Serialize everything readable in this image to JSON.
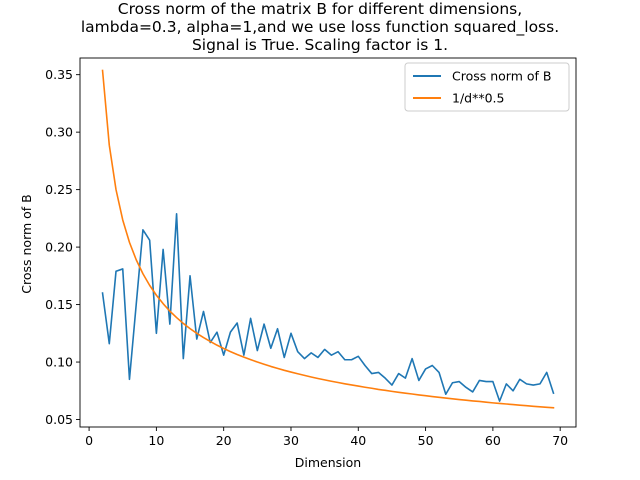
{
  "chart_data": {
    "type": "line",
    "title_lines": [
      "Cross norm of the matrix B for different dimensions,",
      "lambda=0.3, alpha=1,and we use loss function squared_loss.",
      "Signal is True. Scaling factor is 1."
    ],
    "xlabel": "Dimension",
    "ylabel": "Cross norm of B",
    "xlim": [
      -1.35,
      72.35
    ],
    "ylim": [
      0.0435,
      0.3645
    ],
    "xticks": [
      0,
      10,
      20,
      30,
      40,
      50,
      60,
      70
    ],
    "xtick_labels": [
      "0",
      "10",
      "20",
      "30",
      "40",
      "50",
      "60",
      "70"
    ],
    "yticks": [
      0.05,
      0.1,
      0.15,
      0.2,
      0.25,
      0.3,
      0.35
    ],
    "ytick_labels": [
      "0.05",
      "0.10",
      "0.15",
      "0.20",
      "0.25",
      "0.30",
      "0.35"
    ],
    "grid": false,
    "legend_position": "upper-right",
    "series": [
      {
        "name": "Cross norm of B",
        "color": "#1f77b4",
        "x": [
          2,
          3,
          4,
          5,
          6,
          7,
          8,
          9,
          10,
          11,
          12,
          13,
          14,
          15,
          16,
          17,
          18,
          19,
          20,
          21,
          22,
          23,
          24,
          25,
          26,
          27,
          28,
          29,
          30,
          31,
          32,
          33,
          34,
          35,
          36,
          37,
          38,
          39,
          40,
          41,
          42,
          43,
          44,
          45,
          46,
          47,
          48,
          49,
          50,
          51,
          52,
          53,
          54,
          55,
          56,
          57,
          58,
          59,
          60,
          61,
          62,
          63,
          64,
          65,
          66,
          67,
          68,
          69
        ],
        "y": [
          0.16,
          0.116,
          0.179,
          0.181,
          0.085,
          0.15,
          0.215,
          0.206,
          0.125,
          0.198,
          0.133,
          0.229,
          0.103,
          0.175,
          0.12,
          0.144,
          0.117,
          0.126,
          0.106,
          0.126,
          0.134,
          0.106,
          0.138,
          0.11,
          0.133,
          0.112,
          0.129,
          0.104,
          0.125,
          0.109,
          0.103,
          0.108,
          0.104,
          0.111,
          0.106,
          0.109,
          0.102,
          0.102,
          0.105,
          0.097,
          0.09,
          0.091,
          0.086,
          0.08,
          0.09,
          0.086,
          0.103,
          0.084,
          0.094,
          0.097,
          0.091,
          0.072,
          0.082,
          0.083,
          0.078,
          0.074,
          0.084,
          0.083,
          0.083,
          0.066,
          0.081,
          0.075,
          0.085,
          0.081,
          0.08,
          0.081,
          0.091,
          0.073
        ]
      },
      {
        "name": "1/d**0.5",
        "color": "#ff7f0e",
        "x": [
          2,
          3,
          4,
          5,
          6,
          7,
          8,
          9,
          10,
          11,
          12,
          13,
          14,
          15,
          16,
          17,
          18,
          19,
          20,
          21,
          22,
          23,
          24,
          25,
          26,
          27,
          28,
          29,
          30,
          31,
          32,
          33,
          34,
          35,
          36,
          37,
          38,
          39,
          40,
          41,
          42,
          43,
          44,
          45,
          46,
          47,
          48,
          49,
          50,
          51,
          52,
          53,
          54,
          55,
          56,
          57,
          58,
          59,
          60,
          61,
          62,
          63,
          64,
          65,
          66,
          67,
          68,
          69
        ],
        "y": [
          0.3536,
          0.2887,
          0.25,
          0.2236,
          0.2041,
          0.189,
          0.1768,
          0.1667,
          0.1581,
          0.1508,
          0.1443,
          0.1387,
          0.1336,
          0.1291,
          0.125,
          0.1213,
          0.1179,
          0.1147,
          0.1118,
          0.1091,
          0.1066,
          0.1043,
          0.1021,
          0.1,
          0.0981,
          0.0962,
          0.0945,
          0.0928,
          0.0913,
          0.0898,
          0.0884,
          0.087,
          0.0857,
          0.0845,
          0.0833,
          0.0822,
          0.0811,
          0.0801,
          0.0791,
          0.0781,
          0.0772,
          0.0762,
          0.0754,
          0.0745,
          0.0737,
          0.0729,
          0.0722,
          0.0714,
          0.0707,
          0.07,
          0.0693,
          0.0687,
          0.068,
          0.0674,
          0.0668,
          0.0662,
          0.0657,
          0.0651,
          0.0645,
          0.064,
          0.0635,
          0.063,
          0.0625,
          0.062,
          0.0615,
          0.0611,
          0.0606,
          0.0602
        ]
      }
    ]
  }
}
